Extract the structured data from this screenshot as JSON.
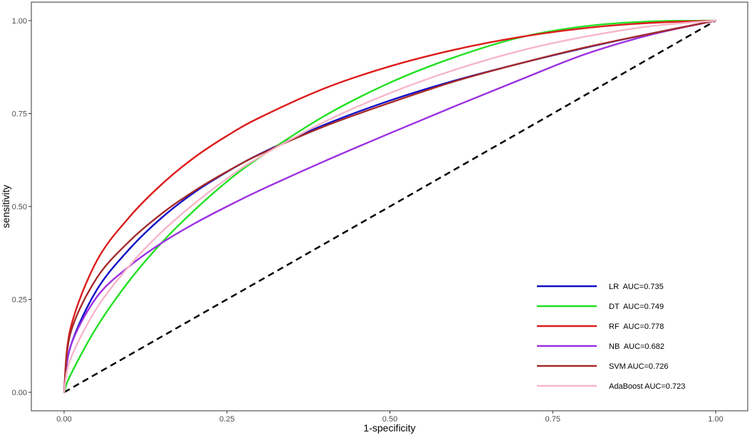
{
  "chart_data": {
    "type": "line",
    "title": "",
    "xlabel": "1-specificity",
    "ylabel": "sensitivity",
    "xlim": [
      0,
      1
    ],
    "ylim": [
      0,
      1
    ],
    "grid": false,
    "legend_position": "bottom-right",
    "x_ticks": [
      "0.00",
      "0.25",
      "0.50",
      "0.75",
      "1.00"
    ],
    "y_ticks": [
      "0.00",
      "0.25",
      "0.50",
      "0.75",
      "1.00"
    ],
    "x": [
      0,
      0.01,
      0.05,
      0.1,
      0.15,
      0.2,
      0.25,
      0.3,
      0.4,
      0.5,
      0.6,
      0.7,
      0.8,
      0.9,
      1
    ],
    "series": [
      {
        "name": "LR  AUC=0.735",
        "color": "#1010c8",
        "values": [
          0,
          0.124,
          0.275,
          0.385,
          0.47,
          0.538,
          0.593,
          0.641,
          0.72,
          0.785,
          0.839,
          0.885,
          0.927,
          0.965,
          1
        ]
      },
      {
        "name": "DT  AUC=0.749",
        "color": "#22e022",
        "values": [
          0,
          0.047,
          0.175,
          0.3,
          0.403,
          0.49,
          0.567,
          0.632,
          0.744,
          0.833,
          0.902,
          0.955,
          0.985,
          0.998,
          1
        ]
      },
      {
        "name": "RF  AUC=0.778",
        "color": "#dd1c1c",
        "values": [
          0,
          0.173,
          0.353,
          0.471,
          0.56,
          0.632,
          0.69,
          0.739,
          0.818,
          0.877,
          0.922,
          0.956,
          0.98,
          0.994,
          1
        ]
      },
      {
        "name": "NB  AUC=0.682",
        "color": "#9b30e0",
        "values": [
          0,
          0.124,
          0.256,
          0.339,
          0.402,
          0.454,
          0.5,
          0.543,
          0.622,
          0.697,
          0.77,
          0.841,
          0.91,
          0.962,
          1
        ]
      },
      {
        "name": "SVM AUC=0.726",
        "color": "#a52a2a",
        "values": [
          0,
          0.16,
          0.307,
          0.406,
          0.481,
          0.542,
          0.594,
          0.64,
          0.716,
          0.779,
          0.837,
          0.885,
          0.928,
          0.965,
          1
        ]
      },
      {
        "name": "AdaBoost AUC=0.723",
        "color": "#f7b6c8",
        "values": [
          0,
          0.09,
          0.226,
          0.34,
          0.432,
          0.508,
          0.575,
          0.633,
          0.728,
          0.805,
          0.868,
          0.919,
          0.957,
          0.985,
          1
        ]
      }
    ],
    "reference_line": {
      "x": [
        0,
        1
      ],
      "y": [
        0,
        1
      ],
      "color": "#000000",
      "style": "dashed"
    }
  }
}
